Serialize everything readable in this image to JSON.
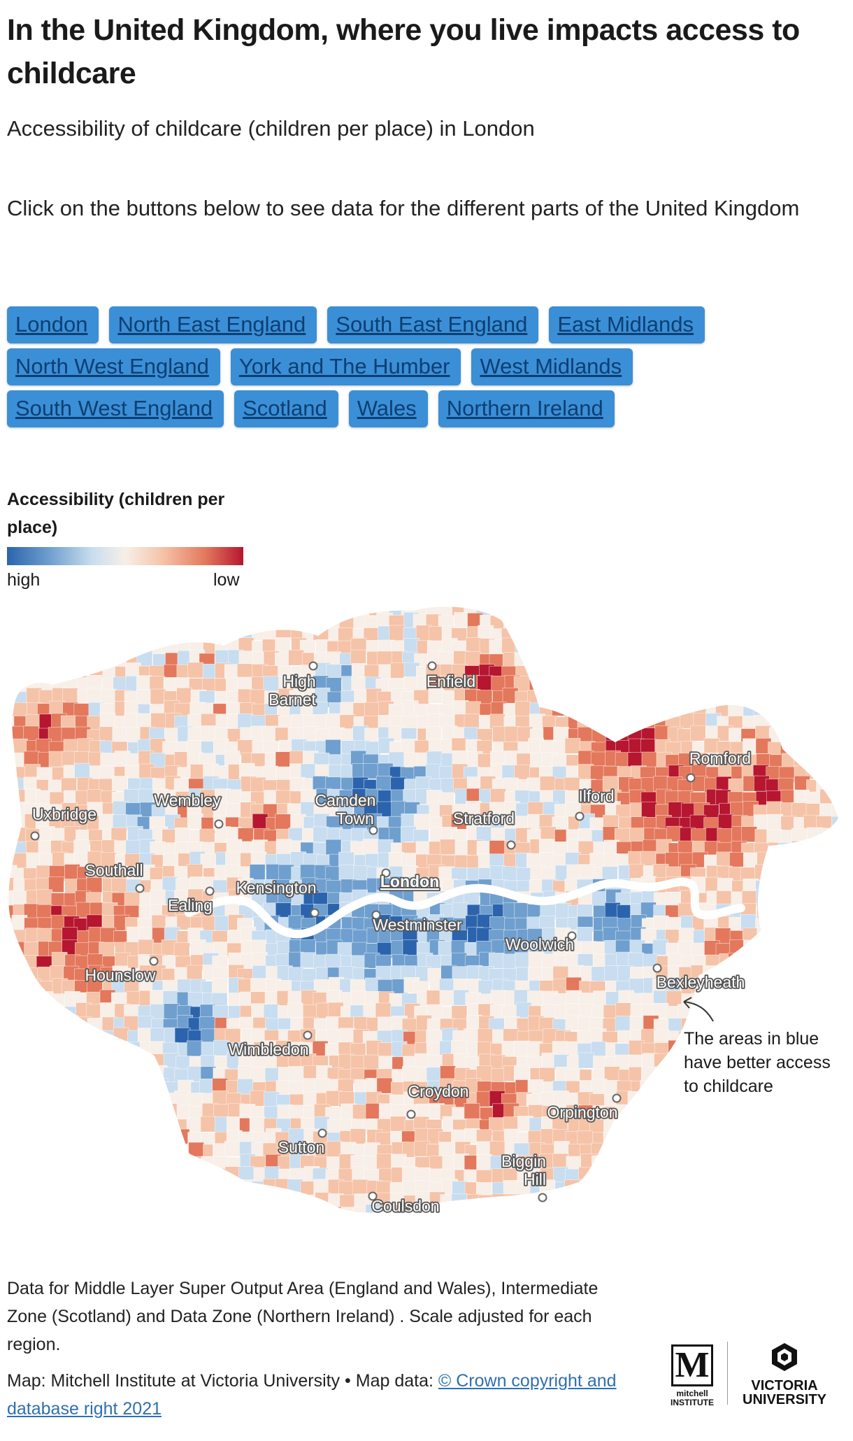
{
  "title": "In the United Kingdom, where you live impacts access to childcare",
  "subtitle": "Accessibility of childcare (children per place) in London",
  "instructions": "Click on the buttons below to see data for the different parts of the United Kingdom",
  "buttons": [
    "London",
    "North East England",
    "South East England",
    "East Midlands",
    "North West England",
    "York and The Humber",
    "West Midlands",
    "South West England",
    "Scotland",
    "Wales",
    "Northern Ireland"
  ],
  "legend": {
    "title": "Accessibility (children per place)",
    "high_label": "high",
    "low_label": "low",
    "colors": [
      "#2b64ad",
      "#6f9fce",
      "#c8ddef",
      "#f7efe8",
      "#f5c3a8",
      "#e3785c",
      "#b6162f"
    ]
  },
  "places": [
    "High Barnet",
    "Enfield",
    "Romford",
    "Camden Town",
    "Wembley",
    "Ilford",
    "Uxbridge",
    "Stratford",
    "London",
    "Southall",
    "Kensington",
    "Ealing",
    "Westminster",
    "Woolwich",
    "Hounslow",
    "Bexleyheath",
    "Wimbledon",
    "Croydon",
    "Orpington",
    "Sutton",
    "Biggin Hill",
    "Coulsdon"
  ],
  "annotation": "The areas in blue have better access to childcare",
  "footnote": "Data for Middle Layer Super Output Area (England and Wales), Intermediate Zone (Scotland) and Data Zone (Northern Ireland) . Scale adjusted for each region.",
  "credit": {
    "prefix": "Map: Mitchell Institute at Victoria University • Map data: ",
    "link_text": "© Crown copyright and database right 2021"
  },
  "logos": {
    "mitchell_mark": "M",
    "mitchell": "mitchell INSTITUTE",
    "vu": "VICTORIA UNIVERSITY"
  }
}
